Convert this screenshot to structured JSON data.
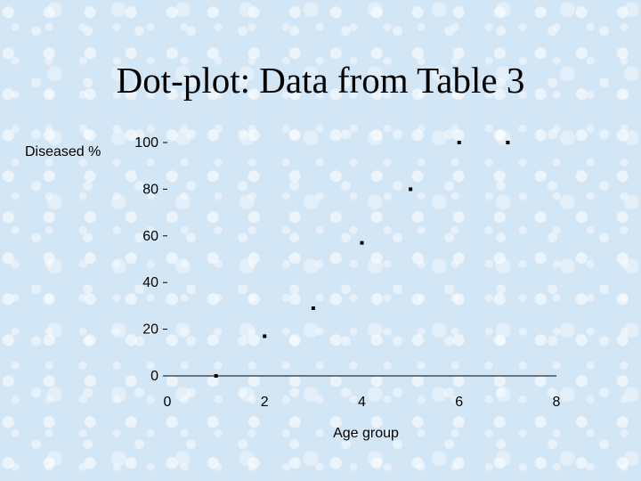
{
  "slide": {
    "title": "Dot-plot: Data from Table 3"
  },
  "chart_data": {
    "type": "scatter",
    "xlabel": "Age group",
    "ylabel": "Diseased %",
    "xlim": [
      0,
      8
    ],
    "ylim": [
      0,
      100
    ],
    "x_ticks": [
      "0",
      "2",
      "4",
      "6",
      "8"
    ],
    "y_ticks": [
      "0",
      "20",
      "40",
      "60",
      "80",
      "100"
    ],
    "grid": false,
    "points": [
      {
        "x": 1,
        "y": 0
      },
      {
        "x": 2,
        "y": 17
      },
      {
        "x": 3,
        "y": 29
      },
      {
        "x": 4,
        "y": 57
      },
      {
        "x": 5,
        "y": 80
      },
      {
        "x": 6,
        "y": 100
      },
      {
        "x": 7,
        "y": 100
      }
    ],
    "marker_color": "#000000"
  }
}
